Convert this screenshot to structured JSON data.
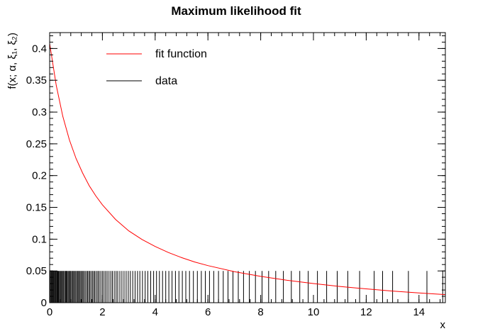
{
  "chart_data": {
    "type": "line",
    "title": "Maximum likelihood fit",
    "xlabel": "x",
    "ylabel": "f(x; α, ξ₁, ξ₂)",
    "xlim": [
      0,
      15
    ],
    "ylim": [
      0,
      0.425
    ],
    "grid": false,
    "legend_position": "top-left",
    "x_ticks": [
      0,
      2,
      4,
      6,
      8,
      10,
      12,
      14
    ],
    "y_ticks": [
      0,
      0.05,
      0.1,
      0.15,
      0.2,
      0.25,
      0.3,
      0.35,
      0.4
    ],
    "legend": [
      {
        "name": "fit function",
        "color": "#ff0000"
      },
      {
        "name": "data",
        "color": "#000000"
      }
    ],
    "series": [
      {
        "name": "fit function",
        "color": "#ff0000",
        "x": [
          0,
          0.25,
          0.5,
          0.75,
          1,
          1.25,
          1.5,
          1.75,
          2,
          2.5,
          3,
          3.5,
          4,
          4.5,
          5,
          5.5,
          6,
          7,
          8,
          9,
          10,
          11,
          12,
          13,
          14,
          15
        ],
        "y": [
          0.408,
          0.342,
          0.293,
          0.256,
          0.227,
          0.204,
          0.184,
          0.168,
          0.154,
          0.131,
          0.113,
          0.0995,
          0.0885,
          0.079,
          0.071,
          0.064,
          0.0583,
          0.0489,
          0.0414,
          0.0353,
          0.0301,
          0.0256,
          0.0217,
          0.0183,
          0.0154,
          0.0127
        ]
      },
      {
        "name": "data",
        "color": "#000000",
        "mark_height": 0.05,
        "x": [
          0.02,
          0.05,
          0.08,
          0.1,
          0.13,
          0.15,
          0.18,
          0.2,
          0.23,
          0.26,
          0.28,
          0.31,
          0.34,
          0.36,
          0.4,
          0.43,
          0.46,
          0.5,
          0.53,
          0.57,
          0.6,
          0.63,
          0.66,
          0.7,
          0.73,
          0.77,
          0.8,
          0.84,
          0.88,
          0.91,
          0.95,
          0.99,
          1.03,
          1.07,
          1.1,
          1.14,
          1.18,
          1.22,
          1.26,
          1.3,
          1.35,
          1.4,
          1.44,
          1.49,
          1.53,
          1.58,
          1.63,
          1.68,
          1.72,
          1.78,
          1.83,
          1.88,
          1.94,
          2.0,
          2.06,
          2.12,
          2.18,
          2.25,
          2.32,
          2.38,
          2.45,
          2.52,
          2.58,
          2.66,
          2.74,
          2.82,
          2.9,
          2.98,
          3.06,
          3.15,
          3.24,
          3.33,
          3.42,
          3.52,
          3.62,
          3.72,
          3.83,
          3.94,
          4.05,
          4.16,
          4.28,
          4.4,
          4.52,
          4.64,
          4.77,
          4.9,
          5.03,
          5.16,
          5.3,
          5.45,
          5.6,
          5.75,
          5.9,
          6.06,
          6.22,
          6.4,
          6.58,
          6.76,
          6.95,
          7.15,
          7.35,
          7.57,
          7.8,
          8.05,
          8.3,
          8.57,
          8.86,
          9.16,
          9.48,
          9.8,
          10.15,
          10.5,
          10.9,
          11.3,
          11.75,
          12.3,
          12.62,
          13.0,
          13.6,
          14.3,
          14.9
        ]
      }
    ]
  }
}
